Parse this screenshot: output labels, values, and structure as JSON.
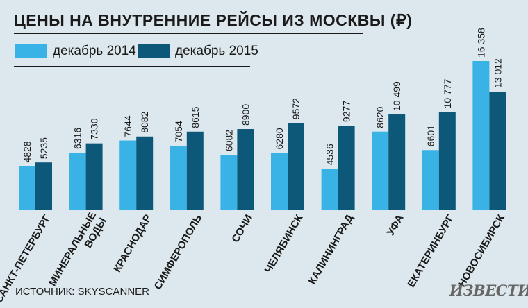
{
  "chart_data": {
    "type": "bar",
    "title": "ЦЕНЫ НА ВНУТРЕННИЕ РЕЙСЫ ИЗ МОСКВЫ (₽)",
    "categories": [
      "САНКТ-ПЕТЕРБУРГ",
      "МИНЕРАЛЬНЫЕ ВОДЫ",
      "КРАСНОДАР",
      "СИМФЕРОПОЛЬ",
      "СОЧИ",
      "ЧЕЛЯБИНСК",
      "КАЛИНИНГРАД",
      "УФА",
      "ЕКАТЕРИНБУРГ",
      "НОВОСИБИРСК"
    ],
    "category_lines": [
      [
        "САНКТ-ПЕТЕРБУРГ"
      ],
      [
        "МИНЕРАЛЬНЫЕ",
        "ВОДЫ"
      ],
      [
        "КРАСНОДАР"
      ],
      [
        "СИМФЕРОПОЛЬ"
      ],
      [
        "СОЧИ"
      ],
      [
        "ЧЕЛЯБИНСК"
      ],
      [
        "КАЛИНИНГРАД"
      ],
      [
        "УФА"
      ],
      [
        "ЕКАТЕРИНБУРГ"
      ],
      [
        "НОВОСИБИРСК"
      ]
    ],
    "series": [
      {
        "name": "декабрь 2014",
        "color": "#39b3e6",
        "values": [
          4828,
          6316,
          7644,
          7054,
          6082,
          6280,
          4536,
          8620,
          6601,
          16358
        ],
        "labels": [
          "4828",
          "6316",
          "7644",
          "7054",
          "6082",
          "6280",
          "4536",
          "8620",
          "6601",
          "16 358"
        ]
      },
      {
        "name": "декабрь 2015",
        "color": "#0d5878",
        "values": [
          5235,
          7330,
          8082,
          8615,
          8900,
          9572,
          9277,
          10499,
          10777,
          13012
        ],
        "labels": [
          "5235",
          "7330",
          "8082",
          "8615",
          "8900",
          "9572",
          "9277",
          "10 499",
          "10 777",
          "13 012"
        ]
      }
    ],
    "ylim": [
      0,
      16358
    ],
    "legend": "top-left",
    "grid": false
  },
  "source": "ИСТОЧНИК: SKYSCANNER",
  "logo_text": "ИЗВЕСТИЯ",
  "colors": {
    "background": "#dde8ee",
    "text": "#1a1a1a"
  }
}
